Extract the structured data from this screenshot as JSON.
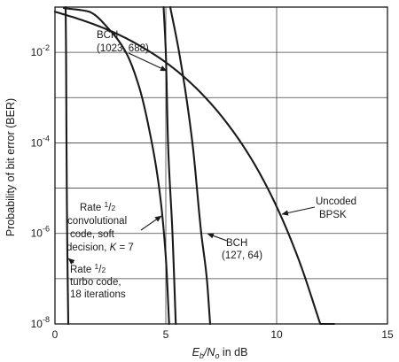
{
  "chart_data": {
    "type": "line",
    "title": "",
    "xlabel": {
      "pre": "E",
      "sub1": "b",
      "mid": "/N",
      "sub2": "o",
      "post": " in dB"
    },
    "ylabel": "Probability of bit error (BER)",
    "xlim": [
      0,
      15
    ],
    "ylim": [
      1e-08,
      0.1
    ],
    "yscale": "log",
    "grid": true,
    "x_ticks": [
      0,
      5,
      10,
      15
    ],
    "x_tick_labels": [
      "0",
      "5",
      "10",
      "15"
    ],
    "y_ticks": [
      1e-08,
      1e-06,
      0.0001,
      0.01
    ],
    "y_tick_labels": [
      {
        "base": "10",
        "exp": "-8"
      },
      {
        "base": "10",
        "exp": "-6"
      },
      {
        "base": "10",
        "exp": "-4"
      },
      {
        "base": "10",
        "exp": "-2"
      }
    ],
    "series": [
      {
        "name": "Uncoded BPSK",
        "x": [
          0,
          1,
          2,
          3,
          4,
          5,
          6,
          7,
          8,
          9,
          10,
          11,
          12,
          12.6
        ],
        "y": [
          0.079,
          0.056,
          0.0375,
          0.023,
          0.0125,
          0.006,
          0.0024,
          0.00077,
          0.00019,
          3.4e-05,
          3.9e-06,
          2.6e-07,
          9e-09,
          1.2e-09
        ]
      },
      {
        "name": "BCH (1023, 688)",
        "x": [
          4.9,
          5.0,
          5.1,
          5.3,
          5.45
        ],
        "y": [
          0.1,
          0.01,
          0.0001,
          1e-06,
          1e-08
        ]
      },
      {
        "name": "BCH (127, 64)",
        "x": [
          5.2,
          5.6,
          6.2,
          6.6,
          6.85,
          7.0
        ],
        "y": [
          0.1,
          0.01,
          0.0001,
          1e-06,
          1e-07,
          1e-08
        ]
      },
      {
        "name": "Rate 1/2 convolutional code, soft decision, K = 7",
        "x": [
          0.4,
          1.5,
          2.5,
          3.2,
          3.8,
          4.3,
          4.7,
          5.0,
          5.15
        ],
        "y": [
          0.095,
          0.08,
          0.03,
          0.01,
          0.0017,
          0.00015,
          1e-05,
          3e-07,
          1e-08
        ]
      },
      {
        "name": "Rate 1/2 turbo code, 18 iterations",
        "x": [
          0.48,
          0.5,
          0.52,
          0.55,
          0.6
        ],
        "y": [
          0.1,
          0.01,
          0.0001,
          1e-06,
          1e-08
        ]
      }
    ],
    "annotations": [
      {
        "lines": [
          "BCH",
          "(1023, 688)"
        ]
      },
      {
        "lines": [
          "BCH",
          "(127, 64)"
        ]
      },
      {
        "lines": [
          "Uncoded",
          "BPSK"
        ]
      },
      {
        "lines": [
          "convolutional",
          "code, soft"
        ],
        "first": {
          "pre": "Rate ",
          "num": "1",
          "den": "2"
        },
        "last": {
          "pre": "decision, ",
          "var": "K",
          "post": " = 7"
        }
      },
      {
        "lines": [
          "turbo code,",
          "18 iterations"
        ],
        "first": {
          "pre": "Rate ",
          "num": "1",
          "den": "2"
        }
      }
    ]
  }
}
